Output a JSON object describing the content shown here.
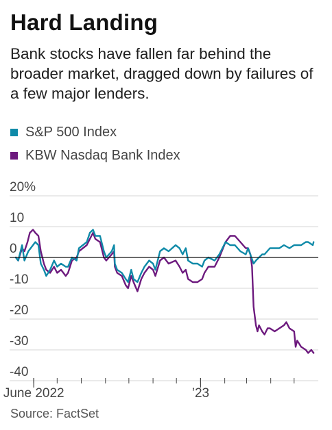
{
  "title": "Hard Landing",
  "subtitle": "Bank stocks have fallen far behind the broader market, dragged down by failures of a few major lenders.",
  "source": "Source: FactSet",
  "colors": {
    "sp500": "#0f8aa8",
    "kbw": "#6d1a7e",
    "grid": "#d6d6d6",
    "zero": "#111111",
    "axis": "#444444"
  },
  "chart_data": {
    "type": "line",
    "title": "Hard Landing",
    "ylabel": "",
    "xlabel": "",
    "y_unit": "%",
    "ylim": [
      -40,
      20
    ],
    "y_ticks": [
      {
        "value": 20,
        "label": "20%"
      },
      {
        "value": 10,
        "label": "10"
      },
      {
        "value": 0,
        "label": "0"
      },
      {
        "value": -10,
        "label": "-10"
      },
      {
        "value": -20,
        "label": "-20"
      },
      {
        "value": -30,
        "label": "-30"
      },
      {
        "value": -40,
        "label": "-40"
      }
    ],
    "xlim": [
      "2022-05-01",
      "2023-06-01"
    ],
    "x_tick_labels": [
      {
        "date": "2022-06-01",
        "label": "June 2022"
      },
      {
        "date": "2023-01-01",
        "label": "’23"
      }
    ],
    "x_month_ticks": [
      "2022-06-01",
      "2022-07-01",
      "2022-08-01",
      "2022-09-01",
      "2022-10-01",
      "2022-11-01",
      "2022-12-01",
      "2023-01-01",
      "2023-02-01",
      "2023-03-01",
      "2023-04-01",
      "2023-05-01"
    ],
    "grid": true,
    "legend_position": "top-left",
    "series": [
      {
        "name": "S&P 500 Index",
        "color": "#0f8aa8",
        "points": [
          [
            "2022-05-09",
            0
          ],
          [
            "2022-05-12",
            -1
          ],
          [
            "2022-05-17",
            4
          ],
          [
            "2022-05-20",
            -1
          ],
          [
            "2022-05-25",
            2
          ],
          [
            "2022-05-31",
            4
          ],
          [
            "2022-06-03",
            5
          ],
          [
            "2022-06-07",
            4
          ],
          [
            "2022-06-10",
            -2
          ],
          [
            "2022-06-14",
            -4
          ],
          [
            "2022-06-17",
            -6
          ],
          [
            "2022-06-22",
            -4
          ],
          [
            "2022-06-27",
            -1
          ],
          [
            "2022-07-01",
            -3
          ],
          [
            "2022-07-06",
            -2
          ],
          [
            "2022-07-12",
            -3
          ],
          [
            "2022-07-15",
            -3
          ],
          [
            "2022-07-20",
            0
          ],
          [
            "2022-07-26",
            -1
          ],
          [
            "2022-07-29",
            3
          ],
          [
            "2022-08-03",
            4
          ],
          [
            "2022-08-08",
            5
          ],
          [
            "2022-08-12",
            8
          ],
          [
            "2022-08-16",
            9
          ],
          [
            "2022-08-19",
            7
          ],
          [
            "2022-08-25",
            7
          ],
          [
            "2022-08-30",
            2
          ],
          [
            "2022-09-02",
            0
          ],
          [
            "2022-09-09",
            2
          ],
          [
            "2022-09-12",
            4
          ],
          [
            "2022-09-13",
            -2
          ],
          [
            "2022-09-16",
            -4
          ],
          [
            "2022-09-22",
            -5
          ],
          [
            "2022-09-27",
            -7
          ],
          [
            "2022-09-30",
            -8
          ],
          [
            "2022-10-04",
            -4
          ],
          [
            "2022-10-07",
            -7
          ],
          [
            "2022-10-12",
            -8
          ],
          [
            "2022-10-17",
            -5
          ],
          [
            "2022-10-21",
            -3
          ],
          [
            "2022-10-27",
            -1
          ],
          [
            "2022-11-01",
            -2
          ],
          [
            "2022-11-04",
            -4
          ],
          [
            "2022-11-10",
            2
          ],
          [
            "2022-11-15",
            3
          ],
          [
            "2022-11-21",
            2
          ],
          [
            "2022-11-30",
            4
          ],
          [
            "2022-12-05",
            3
          ],
          [
            "2022-12-09",
            1
          ],
          [
            "2022-12-13",
            3
          ],
          [
            "2022-12-16",
            -1
          ],
          [
            "2022-12-22",
            -2
          ],
          [
            "2022-12-28",
            -2
          ],
          [
            "2023-01-03",
            -3
          ],
          [
            "2023-01-06",
            -1
          ],
          [
            "2023-01-11",
            0
          ],
          [
            "2023-01-19",
            -1
          ],
          [
            "2023-01-25",
            1
          ],
          [
            "2023-02-02",
            5
          ],
          [
            "2023-02-08",
            4
          ],
          [
            "2023-02-14",
            4
          ],
          [
            "2023-02-21",
            2
          ],
          [
            "2023-02-28",
            1
          ],
          [
            "2023-03-03",
            3
          ],
          [
            "2023-03-10",
            -2
          ],
          [
            "2023-03-13",
            -1
          ],
          [
            "2023-03-17",
            0
          ],
          [
            "2023-03-21",
            1
          ],
          [
            "2023-03-24",
            1
          ],
          [
            "2023-03-31",
            3
          ],
          [
            "2023-04-06",
            3
          ],
          [
            "2023-04-12",
            3
          ],
          [
            "2023-04-18",
            4
          ],
          [
            "2023-04-25",
            3
          ],
          [
            "2023-05-01",
            4
          ],
          [
            "2023-05-05",
            4
          ],
          [
            "2023-05-10",
            4
          ],
          [
            "2023-05-16",
            5
          ],
          [
            "2023-05-19",
            5
          ],
          [
            "2023-05-25",
            4
          ],
          [
            "2023-05-26",
            5
          ]
        ]
      },
      {
        "name": "KBW Nasdaq Bank Index",
        "color": "#6d1a7e",
        "points": [
          [
            "2022-05-09",
            0
          ],
          [
            "2022-05-12",
            -1
          ],
          [
            "2022-05-17",
            3
          ],
          [
            "2022-05-20",
            2
          ],
          [
            "2022-05-24",
            5
          ],
          [
            "2022-05-27",
            8
          ],
          [
            "2022-05-31",
            9
          ],
          [
            "2022-06-03",
            8
          ],
          [
            "2022-06-07",
            7
          ],
          [
            "2022-06-10",
            2
          ],
          [
            "2022-06-14",
            -2
          ],
          [
            "2022-06-17",
            -4
          ],
          [
            "2022-06-22",
            -5
          ],
          [
            "2022-06-27",
            -3
          ],
          [
            "2022-07-01",
            -5
          ],
          [
            "2022-07-06",
            -4
          ],
          [
            "2022-07-12",
            -6
          ],
          [
            "2022-07-15",
            -5
          ],
          [
            "2022-07-20",
            -1
          ],
          [
            "2022-07-26",
            0
          ],
          [
            "2022-07-29",
            2
          ],
          [
            "2022-08-03",
            3
          ],
          [
            "2022-08-08",
            4
          ],
          [
            "2022-08-12",
            6
          ],
          [
            "2022-08-16",
            8
          ],
          [
            "2022-08-19",
            6
          ],
          [
            "2022-08-25",
            5
          ],
          [
            "2022-08-30",
            0
          ],
          [
            "2022-09-02",
            -1
          ],
          [
            "2022-09-09",
            1
          ],
          [
            "2022-09-12",
            2
          ],
          [
            "2022-09-13",
            -3
          ],
          [
            "2022-09-16",
            -5
          ],
          [
            "2022-09-22",
            -6
          ],
          [
            "2022-09-27",
            -9
          ],
          [
            "2022-09-30",
            -10
          ],
          [
            "2022-10-04",
            -6
          ],
          [
            "2022-10-07",
            -8
          ],
          [
            "2022-10-12",
            -11
          ],
          [
            "2022-10-17",
            -7
          ],
          [
            "2022-10-21",
            -5
          ],
          [
            "2022-10-27",
            -3
          ],
          [
            "2022-11-01",
            -4
          ],
          [
            "2022-11-04",
            -6
          ],
          [
            "2022-11-10",
            -1
          ],
          [
            "2022-11-15",
            0
          ],
          [
            "2022-11-21",
            -2
          ],
          [
            "2022-11-30",
            -1
          ],
          [
            "2022-12-05",
            -3
          ],
          [
            "2022-12-09",
            -5
          ],
          [
            "2022-12-13",
            -4
          ],
          [
            "2022-12-16",
            -7
          ],
          [
            "2022-12-22",
            -8
          ],
          [
            "2022-12-28",
            -8
          ],
          [
            "2023-01-03",
            -7
          ],
          [
            "2023-01-06",
            -5
          ],
          [
            "2023-01-11",
            -3
          ],
          [
            "2023-01-19",
            -3
          ],
          [
            "2023-01-25",
            0
          ],
          [
            "2023-02-02",
            5
          ],
          [
            "2023-02-08",
            7
          ],
          [
            "2023-02-14",
            7
          ],
          [
            "2023-02-21",
            5
          ],
          [
            "2023-02-28",
            3
          ],
          [
            "2023-03-03",
            3
          ],
          [
            "2023-03-06",
            1
          ],
          [
            "2023-03-08",
            -3
          ],
          [
            "2023-03-10",
            -16
          ],
          [
            "2023-03-13",
            -22
          ],
          [
            "2023-03-15",
            -24
          ],
          [
            "2023-03-17",
            -22
          ],
          [
            "2023-03-21",
            -24
          ],
          [
            "2023-03-24",
            -25
          ],
          [
            "2023-03-28",
            -23
          ],
          [
            "2023-03-31",
            -23
          ],
          [
            "2023-04-06",
            -24
          ],
          [
            "2023-04-12",
            -23
          ],
          [
            "2023-04-18",
            -22
          ],
          [
            "2023-04-21",
            -21
          ],
          [
            "2023-04-25",
            -23
          ],
          [
            "2023-05-01",
            -24
          ],
          [
            "2023-05-03",
            -29
          ],
          [
            "2023-05-05",
            -27
          ],
          [
            "2023-05-10",
            -29
          ],
          [
            "2023-05-16",
            -30
          ],
          [
            "2023-05-19",
            -31
          ],
          [
            "2023-05-23",
            -30
          ],
          [
            "2023-05-26",
            -31
          ]
        ]
      }
    ]
  }
}
